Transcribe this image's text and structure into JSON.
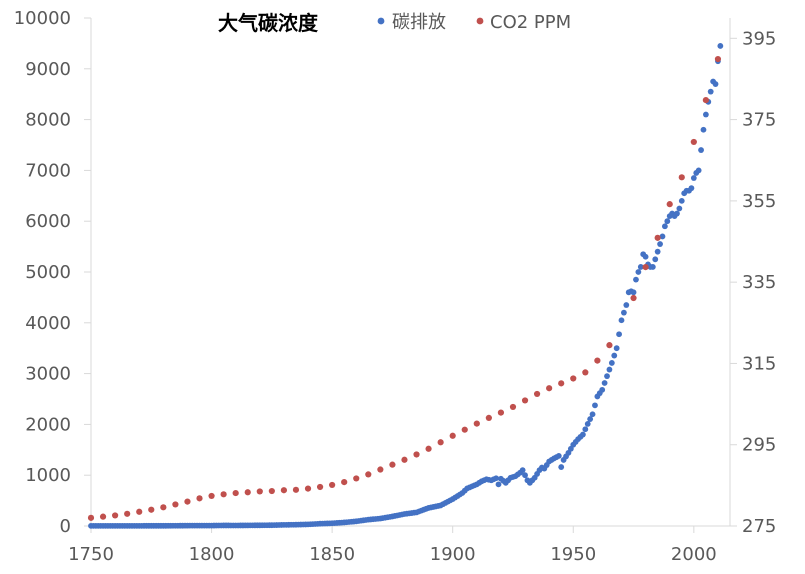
{
  "chart_data": {
    "type": "scatter",
    "title": "大气碳浓度",
    "xlabel": "",
    "ylabel": "",
    "y2label": "",
    "xlim": [
      1750,
      2015
    ],
    "ylim": [
      0,
      10000
    ],
    "y2lim": [
      275,
      400
    ],
    "x_ticks": [
      "1750",
      "1800",
      "1850",
      "1900",
      "1950",
      "2000"
    ],
    "y_ticks": [
      "0",
      "1000",
      "2000",
      "3000",
      "4000",
      "5000",
      "6000",
      "7000",
      "8000",
      "9000",
      "10000"
    ],
    "y2_ticks": [
      "275",
      "295",
      "315",
      "335",
      "355",
      "375",
      "395"
    ],
    "grid": false,
    "legend_position": "top",
    "colors": {
      "emissions": "#4472C4",
      "co2": "#C0504D",
      "axis": "#D9D9D9",
      "text": "#595959"
    },
    "series": [
      {
        "name": "碳排放",
        "axis": "left",
        "color": "#4472C4",
        "points": [
          [
            1750,
            3
          ],
          [
            1755,
            3
          ],
          [
            1760,
            3
          ],
          [
            1765,
            3
          ],
          [
            1770,
            3
          ],
          [
            1775,
            4
          ],
          [
            1780,
            4
          ],
          [
            1785,
            5
          ],
          [
            1790,
            7
          ],
          [
            1795,
            8
          ],
          [
            1800,
            8
          ],
          [
            1805,
            11
          ],
          [
            1810,
            10
          ],
          [
            1815,
            12
          ],
          [
            1820,
            14
          ],
          [
            1825,
            16
          ],
          [
            1830,
            22
          ],
          [
            1835,
            26
          ],
          [
            1840,
            32
          ],
          [
            1845,
            45
          ],
          [
            1850,
            54
          ],
          [
            1855,
            70
          ],
          [
            1860,
            92
          ],
          [
            1865,
            125
          ],
          [
            1870,
            147
          ],
          [
            1875,
            188
          ],
          [
            1880,
            236
          ],
          [
            1885,
            268
          ],
          [
            1890,
            356
          ],
          [
            1895,
            405
          ],
          [
            1900,
            530
          ],
          [
            1902,
            590
          ],
          [
            1904,
            650
          ],
          [
            1906,
            740
          ],
          [
            1908,
            780
          ],
          [
            1910,
            820
          ],
          [
            1912,
            880
          ],
          [
            1914,
            920
          ],
          [
            1916,
            900
          ],
          [
            1918,
            940
          ],
          [
            1919,
            820
          ],
          [
            1920,
            930
          ],
          [
            1922,
            850
          ],
          [
            1924,
            950
          ],
          [
            1926,
            980
          ],
          [
            1928,
            1050
          ],
          [
            1929,
            1100
          ],
          [
            1930,
            1000
          ],
          [
            1931,
            900
          ],
          [
            1932,
            850
          ],
          [
            1934,
            950
          ],
          [
            1936,
            1100
          ],
          [
            1937,
            1150
          ],
          [
            1938,
            1130
          ],
          [
            1940,
            1270
          ],
          [
            1942,
            1330
          ],
          [
            1944,
            1380
          ],
          [
            1945,
            1160
          ],
          [
            1946,
            1300
          ],
          [
            1948,
            1440
          ],
          [
            1950,
            1600
          ],
          [
            1952,
            1710
          ],
          [
            1954,
            1800
          ],
          [
            1956,
            2010
          ],
          [
            1958,
            2200
          ],
          [
            1960,
            2550
          ],
          [
            1962,
            2680
          ],
          [
            1964,
            2950
          ],
          [
            1966,
            3210
          ],
          [
            1968,
            3500
          ],
          [
            1970,
            4050
          ],
          [
            1971,
            4200
          ],
          [
            1972,
            4350
          ],
          [
            1973,
            4600
          ],
          [
            1974,
            4620
          ],
          [
            1975,
            4600
          ],
          [
            1976,
            4850
          ],
          [
            1977,
            5000
          ],
          [
            1978,
            5100
          ],
          [
            1979,
            5350
          ],
          [
            1980,
            5300
          ],
          [
            1981,
            5150
          ],
          [
            1982,
            5100
          ],
          [
            1983,
            5100
          ],
          [
            1984,
            5250
          ],
          [
            1985,
            5400
          ],
          [
            1986,
            5550
          ],
          [
            1987,
            5700
          ],
          [
            1988,
            5900
          ],
          [
            1989,
            6000
          ],
          [
            1990,
            6100
          ],
          [
            1991,
            6150
          ],
          [
            1992,
            6100
          ],
          [
            1993,
            6150
          ],
          [
            1994,
            6250
          ],
          [
            1995,
            6400
          ],
          [
            1996,
            6550
          ],
          [
            1997,
            6600
          ],
          [
            1998,
            6600
          ],
          [
            1999,
            6650
          ],
          [
            2000,
            6850
          ],
          [
            2001,
            6950
          ],
          [
            2002,
            7000
          ],
          [
            2003,
            7400
          ],
          [
            2004,
            7800
          ],
          [
            2005,
            8100
          ],
          [
            2006,
            8350
          ],
          [
            2007,
            8550
          ],
          [
            2008,
            8750
          ],
          [
            2009,
            8700
          ],
          [
            2010,
            9150
          ],
          [
            2011,
            9450
          ]
        ]
      },
      {
        "name": "CO2 PPM",
        "axis": "right",
        "color": "#C0504D",
        "points": [
          [
            1750,
            277
          ],
          [
            1755,
            277.3
          ],
          [
            1760,
            277.6
          ],
          [
            1765,
            278
          ],
          [
            1770,
            278.5
          ],
          [
            1775,
            279
          ],
          [
            1780,
            279.6
          ],
          [
            1785,
            280.3
          ],
          [
            1790,
            281
          ],
          [
            1795,
            281.8
          ],
          [
            1800,
            282.4
          ],
          [
            1805,
            282.8
          ],
          [
            1810,
            283.1
          ],
          [
            1815,
            283.3
          ],
          [
            1820,
            283.5
          ],
          [
            1825,
            283.6
          ],
          [
            1830,
            283.8
          ],
          [
            1835,
            283.9
          ],
          [
            1840,
            284.2
          ],
          [
            1845,
            284.6
          ],
          [
            1850,
            285.1
          ],
          [
            1855,
            285.8
          ],
          [
            1860,
            286.7
          ],
          [
            1865,
            287.7
          ],
          [
            1870,
            288.9
          ],
          [
            1875,
            290.1
          ],
          [
            1880,
            291.3
          ],
          [
            1885,
            292.6
          ],
          [
            1890,
            294
          ],
          [
            1895,
            295.6
          ],
          [
            1900,
            297.2
          ],
          [
            1905,
            298.7
          ],
          [
            1910,
            300.2
          ],
          [
            1915,
            301.6
          ],
          [
            1920,
            302.9
          ],
          [
            1925,
            304.3
          ],
          [
            1930,
            305.9
          ],
          [
            1935,
            307.5
          ],
          [
            1940,
            308.9
          ],
          [
            1945,
            310.1
          ],
          [
            1950,
            311.3
          ],
          [
            1955,
            312.8
          ],
          [
            1960,
            315.7
          ],
          [
            1965,
            319.5
          ],
          [
            1975,
            331.1
          ],
          [
            1980,
            338.7
          ],
          [
            1985,
            345.9
          ],
          [
            1990,
            354.2
          ],
          [
            1995,
            360.8
          ],
          [
            2000,
            369.5
          ],
          [
            2005,
            379.8
          ],
          [
            2010,
            389.9
          ]
        ]
      }
    ]
  }
}
